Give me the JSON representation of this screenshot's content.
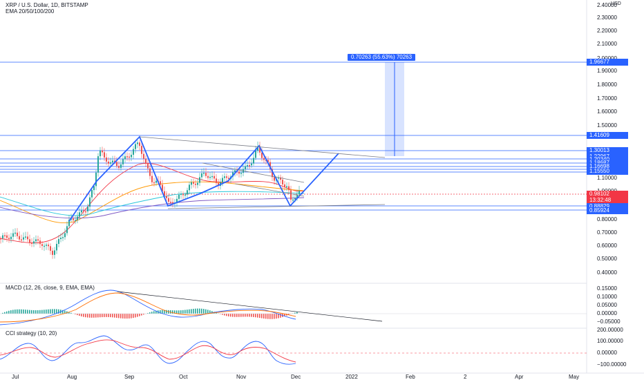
{
  "header": {
    "symbol_line": "XRP / U.S. Dollar, 1D, BITSTAMP",
    "ema_line": "EMA 20/50/100/200"
  },
  "indicators": {
    "macd_label": "MACD (12, 26, close, 9, EMA, EMA)",
    "cci_label": "CCI strategy (10, 20)"
  },
  "price_axis": {
    "currency": "USD",
    "ticks": [
      "2.40000",
      "2.30000",
      "2.20000",
      "2.10000",
      "2.00000",
      "1.90000",
      "1.80000",
      "1.70000",
      "1.60000",
      "1.50000",
      "1.10000",
      "1.00000",
      "0.80000",
      "0.70000",
      "0.60000",
      "0.50000",
      "0.40000"
    ]
  },
  "price_tags": {
    "target": "1.96677",
    "resistance": "1.41609",
    "level_1": "1.30013",
    "level_2": "1.22967",
    "level_3": "1.20340",
    "level_4": "1.18687",
    "level_5": "1.16698",
    "level_6": "1.15550",
    "current_price": "0.98102",
    "countdown": "13:32:48",
    "support_1": "0.88829",
    "support_2": "0.85924"
  },
  "measure_label": "0.70263 (55.63%) 70263",
  "macd_axis": [
    "0.15000",
    "0.10000",
    "0.05000",
    "0.00000",
    "−0.05000"
  ],
  "cci_axis": [
    "200.00000",
    "100.00000",
    "0.00000",
    "−100.00000"
  ],
  "time_axis": [
    "Jul",
    "Aug",
    "Sep",
    "Oct",
    "Nov",
    "Dec",
    "2022",
    "Feb",
    "2",
    "Apr",
    "May"
  ],
  "colors": {
    "accent": "#2962ff",
    "up_candle": "#26a69a",
    "down_candle": "#ef5350",
    "current_price": "#f23645",
    "macd_line": "#2962ff",
    "signal_line": "#ff6d00",
    "cci_line": "#2962ff",
    "cci_signal": "#f23645"
  }
}
